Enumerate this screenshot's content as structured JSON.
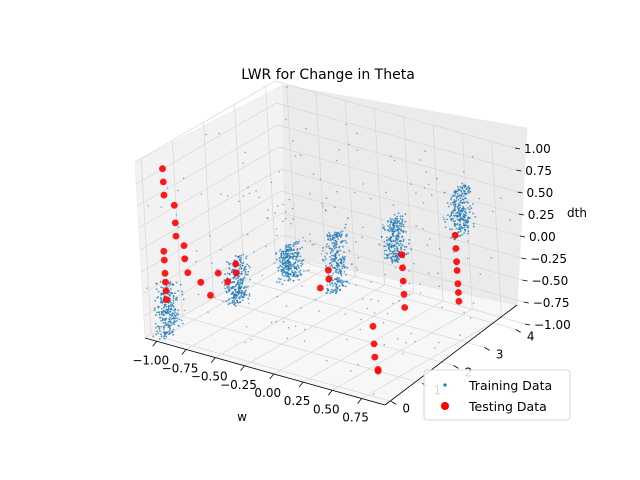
{
  "chart_data": {
    "type": "scatter",
    "projection": "3d",
    "title": "LWR for Change in Theta",
    "xlabel": "w",
    "ylabel": "",
    "zlabel": "dth",
    "xticks": [
      "−1.00",
      "−0.75",
      "−0.50",
      "−0.25",
      "0.00",
      "0.25",
      "0.50",
      "0.75"
    ],
    "yticks": [
      "0",
      "1",
      "2",
      "3",
      "4"
    ],
    "zticks": [
      "−1.00",
      "−0.75",
      "−0.50",
      "−0.25",
      "0.00",
      "0.25",
      "0.50",
      "0.75",
      "1.00"
    ],
    "xlim": [
      -1.1,
      0.95
    ],
    "ylim": [
      -0.2,
      4.3
    ],
    "zlim": [
      -1.0,
      1.0
    ],
    "grid": true,
    "legend_position": "lower-right",
    "series": [
      {
        "name": "Training Data",
        "color": "#1f77b4",
        "marker": "dot",
        "clusters": [
          {
            "x": -0.95,
            "y": 0.0,
            "z_range": [
              -0.95,
              -0.35
            ]
          },
          {
            "x": -0.55,
            "y": 0.8,
            "z_range": [
              -0.6,
              -0.1
            ]
          },
          {
            "x": -0.2,
            "y": 1.2,
            "z_range": [
              -0.3,
              0.1
            ]
          },
          {
            "x": 0.1,
            "y": 1.6,
            "z_range": [
              -0.4,
              0.3
            ]
          },
          {
            "x": 0.4,
            "y": 2.4,
            "z_range": [
              -0.1,
              0.4
            ]
          },
          {
            "x": 0.7,
            "y": 3.4,
            "z_range": [
              0.1,
              0.65
            ]
          }
        ]
      },
      {
        "name": "Testing Data",
        "color": "#ff0000",
        "marker": "circle",
        "points": [
          [
            -0.92,
            0.0,
            0.95
          ],
          [
            -0.92,
            0.0,
            0.8
          ],
          [
            -0.92,
            0.0,
            0.65
          ],
          [
            -0.85,
            0.05,
            0.55
          ],
          [
            -0.85,
            0.05,
            0.35
          ],
          [
            -0.85,
            0.05,
            0.2
          ],
          [
            -0.8,
            0.1,
            0.1
          ],
          [
            -0.8,
            0.1,
            -0.05
          ],
          [
            -0.78,
            0.1,
            -0.2
          ],
          [
            -0.95,
            0.0,
            0.0
          ],
          [
            -0.95,
            0.0,
            -0.1
          ],
          [
            -0.95,
            0.0,
            -0.25
          ],
          [
            -0.95,
            0.0,
            -0.35
          ],
          [
            -0.95,
            0.0,
            -0.45
          ],
          [
            -0.95,
            0.0,
            -0.55
          ],
          [
            -0.7,
            0.2,
            -0.3
          ],
          [
            -0.65,
            0.3,
            -0.45
          ],
          [
            -0.6,
            0.4,
            -0.2
          ],
          [
            -0.55,
            0.5,
            -0.3
          ],
          [
            -0.5,
            0.6,
            -0.1
          ],
          [
            -0.5,
            0.6,
            -0.2
          ],
          [
            0.05,
            1.5,
            -0.15
          ],
          [
            0.05,
            1.5,
            -0.25
          ],
          [
            0.0,
            1.4,
            -0.35
          ],
          [
            0.55,
            1.0,
            -0.5
          ],
          [
            0.55,
            1.0,
            -0.7
          ],
          [
            0.55,
            1.0,
            -0.85
          ],
          [
            0.6,
            0.9,
            -0.95
          ],
          [
            0.6,
            0.9,
            -0.97
          ],
          [
            0.5,
            2.2,
            0.05
          ],
          [
            0.5,
            2.2,
            -0.1
          ],
          [
            0.5,
            2.2,
            -0.25
          ],
          [
            0.5,
            2.2,
            -0.4
          ],
          [
            0.5,
            2.2,
            -0.55
          ],
          [
            0.75,
            3.0,
            0.2
          ],
          [
            0.75,
            3.0,
            0.05
          ],
          [
            0.75,
            3.0,
            -0.1
          ],
          [
            0.75,
            3.0,
            -0.2
          ],
          [
            0.75,
            3.0,
            -0.35
          ],
          [
            0.75,
            3.0,
            -0.45
          ],
          [
            0.75,
            3.0,
            -0.55
          ]
        ]
      }
    ]
  }
}
